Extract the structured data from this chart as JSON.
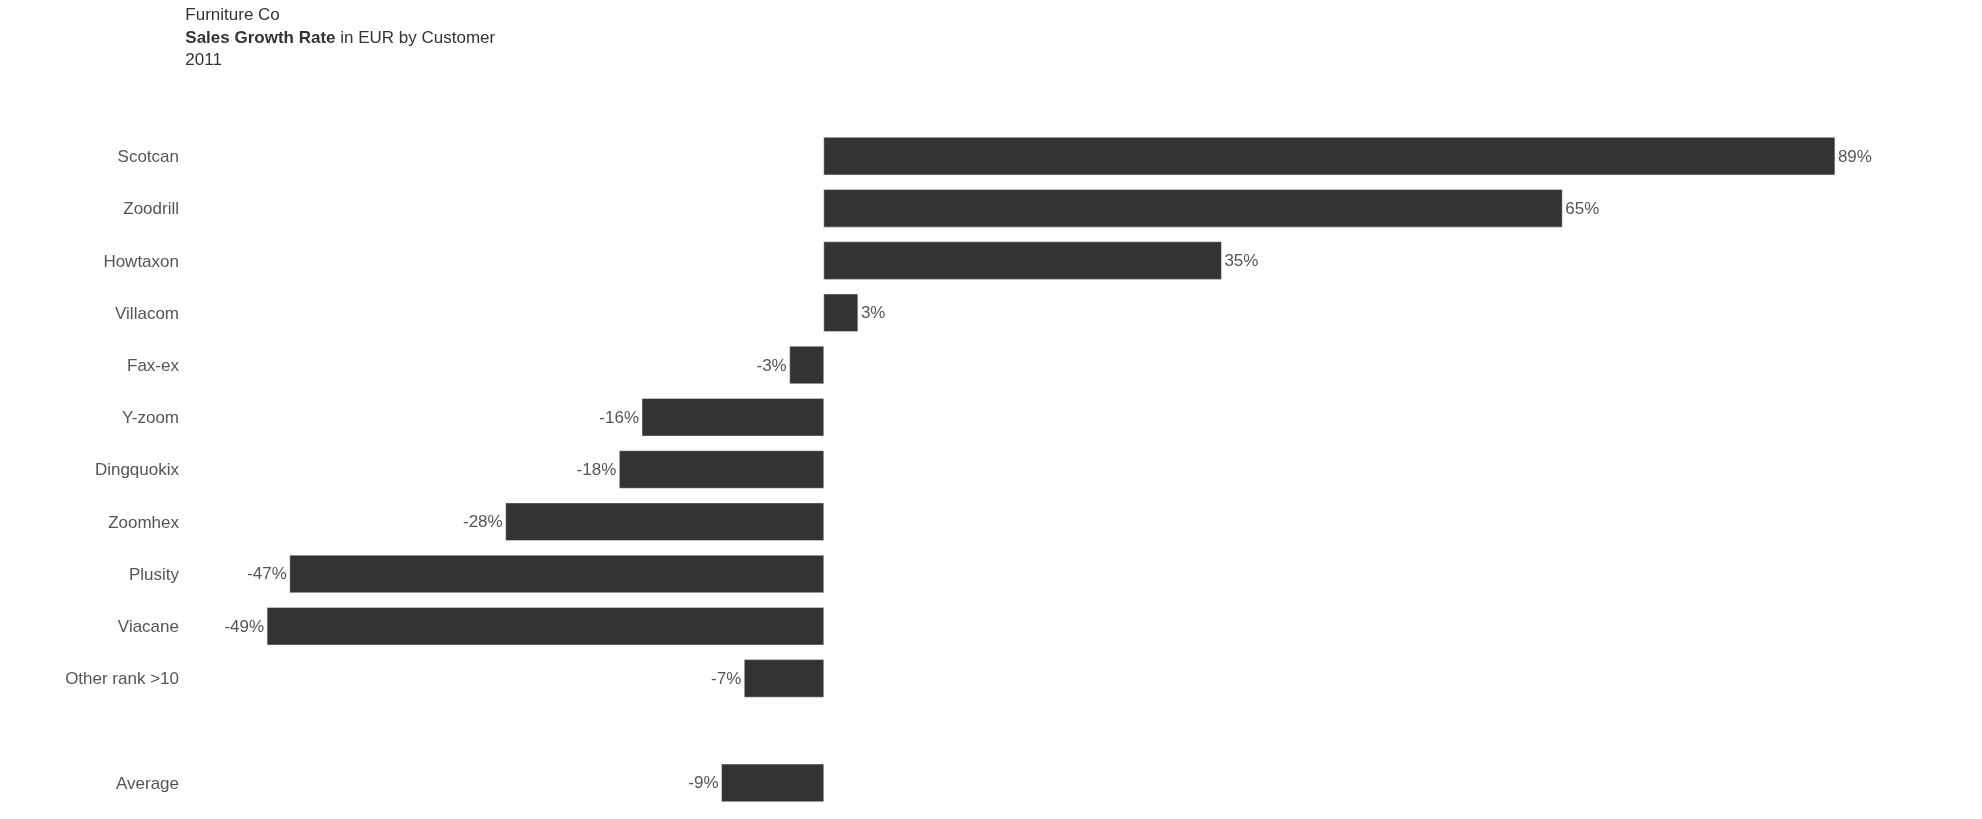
{
  "chart_data": {
    "type": "bar",
    "orientation": "horizontal",
    "title": "Sales Growth Rate",
    "subtitle": "in EUR by Customer",
    "annotations": [
      "Furniture Co",
      "2011"
    ],
    "categories": [
      "Scotcan",
      "Zoodrill",
      "Howtaxon",
      "Villacom",
      "Fax-ex",
      "Y-zoom",
      "Dingquokix",
      "Zoomhex",
      "Plusity",
      "Viacane",
      "Other rank >10",
      null,
      "Average"
    ],
    "values": [
      89,
      65,
      35,
      3,
      -3,
      -16,
      -18,
      -28,
      -47,
      -49,
      -7,
      null,
      -9
    ],
    "value_labels": [
      "89%",
      "65%",
      "35%",
      "3%",
      "-3%",
      "-16%",
      "-18%",
      "-28%",
      "-47%",
      "-49%",
      "-7%",
      null,
      "-9%"
    ],
    "color": "#333333",
    "legend": false
  }
}
